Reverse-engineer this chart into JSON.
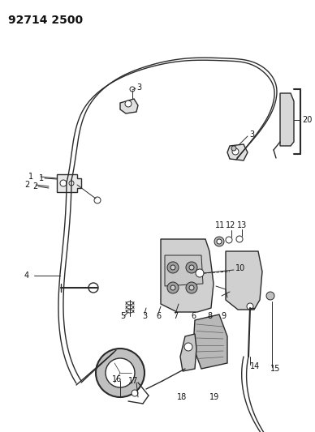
{
  "title": "92714 2500",
  "bg_color": "#ffffff",
  "line_color": "#2a2a2a",
  "label_color": "#111111",
  "title_fontsize": 10,
  "label_fontsize": 7,
  "fig_width": 3.88,
  "fig_height": 5.33,
  "dpi": 100
}
